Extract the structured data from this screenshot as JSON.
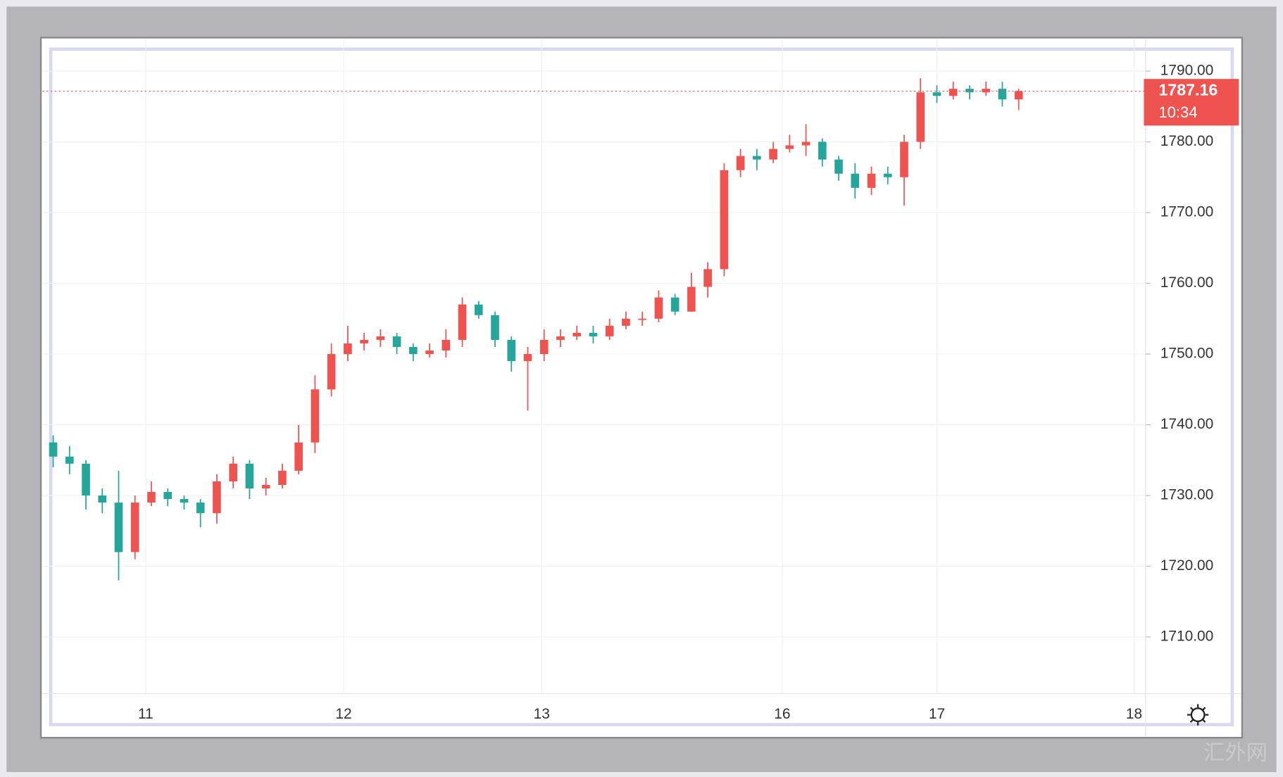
{
  "chart_data": {
    "type": "candlestick",
    "series": {
      "open": [
        1737.5,
        1735.5,
        1734.5,
        1730,
        1729,
        1722,
        1729,
        1730.5,
        1729.5,
        1729,
        1727.5,
        1732,
        1734.5,
        1731,
        1731.5,
        1733.5,
        1737.5,
        1745,
        1750,
        1751.5,
        1752,
        1752.5,
        1751,
        1750,
        1750.5,
        1752,
        1757,
        1755.5,
        1752,
        1749,
        1750,
        1752,
        1752.5,
        1753,
        1752.5,
        1754,
        1755,
        1755,
        1758,
        1756,
        1759.5,
        1762,
        1776,
        1778,
        1777.5,
        1779,
        1779.5,
        1780,
        1777.5,
        1775.5,
        1773.5,
        1775.5,
        1775,
        1780,
        1787,
        1786.5,
        1787.5,
        1787,
        1787.5,
        1786
      ],
      "high": [
        1738.5,
        1737,
        1735,
        1731,
        1733.5,
        1730,
        1732,
        1731,
        1730,
        1729.5,
        1733,
        1735.5,
        1735,
        1732.5,
        1734.5,
        1740,
        1747,
        1751.5,
        1754,
        1753,
        1753.5,
        1753,
        1751.5,
        1751.5,
        1753.5,
        1758,
        1757.5,
        1756,
        1752.5,
        1751,
        1753.5,
        1753.5,
        1754,
        1754,
        1755,
        1756,
        1756,
        1759,
        1758.5,
        1761.5,
        1763,
        1777,
        1779,
        1779,
        1780,
        1781,
        1782.5,
        1780.5,
        1778,
        1777,
        1776.5,
        1776.5,
        1781,
        1789,
        1788,
        1788.5,
        1788,
        1788.5,
        1788.5,
        1787.5
      ],
      "low": [
        1734,
        1733,
        1728,
        1727.5,
        1718,
        1721,
        1728.5,
        1728.5,
        1728,
        1725.5,
        1726,
        1731,
        1729.5,
        1730,
        1731,
        1733,
        1736,
        1744,
        1749,
        1750.5,
        1751,
        1750,
        1749,
        1749.5,
        1749.5,
        1751,
        1755,
        1751,
        1747.5,
        1742,
        1749,
        1751,
        1752,
        1751.5,
        1752,
        1753.5,
        1754,
        1754.5,
        1755.5,
        1756,
        1758,
        1761,
        1775,
        1776,
        1777,
        1778.5,
        1778,
        1776.5,
        1774.5,
        1772,
        1772.5,
        1774,
        1771,
        1779,
        1785.5,
        1786,
        1786,
        1786.5,
        1785,
        1784.5
      ],
      "close": [
        1735.5,
        1734.5,
        1730,
        1729,
        1722,
        1729,
        1730.5,
        1729.5,
        1729,
        1727.5,
        1732,
        1734.5,
        1731,
        1731.5,
        1733.5,
        1737.5,
        1745,
        1750,
        1751.5,
        1752,
        1752.5,
        1751,
        1750,
        1750.5,
        1752,
        1757,
        1755.5,
        1752,
        1749,
        1750,
        1752,
        1752.5,
        1753,
        1752.5,
        1754,
        1755,
        1755,
        1758,
        1756,
        1759.5,
        1762,
        1776,
        1778,
        1777.5,
        1779,
        1779.5,
        1780,
        1777.5,
        1775.5,
        1773.5,
        1775.5,
        1775,
        1780,
        1787,
        1786.5,
        1787.5,
        1787,
        1787.5,
        1786,
        1787.16
      ]
    },
    "up_color": "#ef5350",
    "down_color": "#26a69a",
    "ylim": [
      1702,
      1794.5
    ],
    "yticks": [
      {
        "value": 1710,
        "label": "1710.00"
      },
      {
        "value": 1720,
        "label": "1720.00"
      },
      {
        "value": 1730,
        "label": "1730.00"
      },
      {
        "value": 1740,
        "label": "1740.00"
      },
      {
        "value": 1750,
        "label": "1750.00"
      },
      {
        "value": 1760,
        "label": "1760.00"
      },
      {
        "value": 1770,
        "label": "1770.00"
      },
      {
        "value": 1780,
        "label": "1780.00"
      },
      {
        "value": 1790,
        "label": "1790.00"
      }
    ],
    "xlim": [
      -0.5,
      66.75
    ],
    "xticks": [
      {
        "value": 5.65,
        "label": "11"
      },
      {
        "value": 17.75,
        "label": "12"
      },
      {
        "value": 29.85,
        "label": "13"
      },
      {
        "value": 44.55,
        "label": "16"
      },
      {
        "value": 54,
        "label": "17"
      },
      {
        "value": 66.05,
        "label": "18"
      }
    ],
    "grid": true,
    "current_price": 1787.16,
    "countdown": "10:34"
  },
  "watermark": "汇外网"
}
